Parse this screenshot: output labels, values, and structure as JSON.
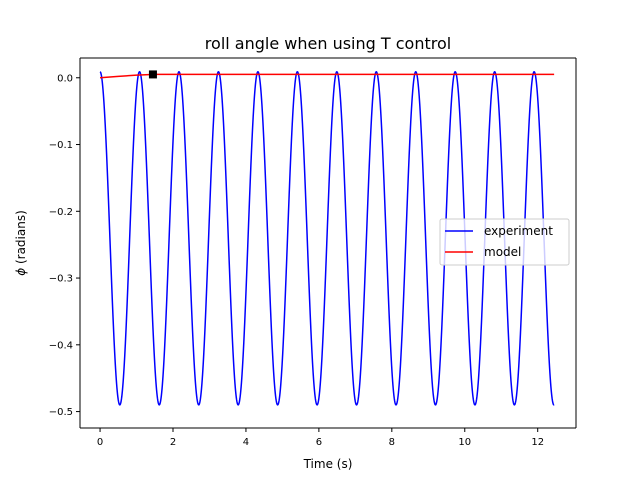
{
  "chart_data": {
    "type": "line",
    "title": "roll angle when using T control",
    "xlabel": "Time (s)",
    "ylabel_symbol": "ϕ",
    "ylabel_suffix": " (radians)",
    "xlim": [
      -0.55,
      13.05
    ],
    "ylim": [
      -0.5246,
      0.0296
    ],
    "x_ticks": [
      0,
      2,
      4,
      6,
      8,
      10,
      12
    ],
    "x_tick_labels": [
      "0",
      "2",
      "4",
      "6",
      "8",
      "10",
      "12"
    ],
    "y_ticks": [
      0.0,
      -0.1,
      -0.2,
      -0.3,
      -0.4,
      -0.5
    ],
    "y_tick_labels": [
      "0.0",
      "−0.1",
      "−0.2",
      "−0.3",
      "−0.4",
      "−0.5"
    ],
    "grid": false,
    "legend_position": "center-right",
    "series": [
      {
        "name": "experiment",
        "color": "#0000ff",
        "style": "solid",
        "model": {
          "x_start": 0,
          "x_end": 12.45,
          "period": 1.082,
          "baseline": -0.2405,
          "amplitude": 0.2495,
          "phase_offset": 0,
          "samples": 1400
        }
      },
      {
        "name": "model",
        "color": "#ff0000",
        "style": "solid",
        "x": [
          0,
          0.5,
          1.0,
          1.5,
          2.0,
          3.0,
          4.0,
          5.0,
          6.0,
          7.0,
          8.0,
          9.0,
          10.0,
          11.0,
          12.0,
          12.45
        ],
        "y": [
          0.0,
          0.002,
          0.004,
          0.005,
          0.005,
          0.005,
          0.005,
          0.005,
          0.005,
          0.005,
          0.005,
          0.005,
          0.005,
          0.005,
          0.005,
          0.005
        ]
      }
    ],
    "markers": [
      {
        "x": 1.45,
        "y": 0.005,
        "shape": "square",
        "color": "#000000"
      }
    ]
  }
}
